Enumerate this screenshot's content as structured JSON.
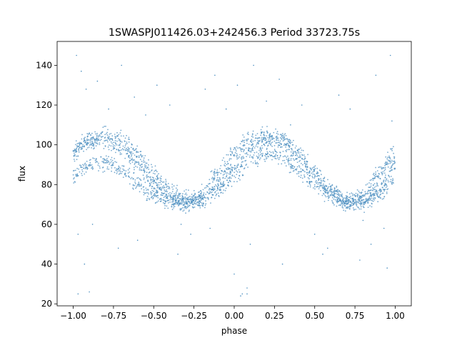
{
  "chart_data": {
    "type": "scatter",
    "title": "1SWASPJ011426.03+242456.3 Period 33723.75s",
    "xlabel": "phase",
    "ylabel": "flux",
    "xlim": [
      -1.1,
      1.1
    ],
    "ylim": [
      19,
      152
    ],
    "xticks": [
      -1.0,
      -0.75,
      -0.5,
      -0.25,
      0.0,
      0.25,
      0.5,
      0.75,
      1.0
    ],
    "xtick_labels": [
      "−1.00",
      "−0.75",
      "−0.50",
      "−0.25",
      "0.00",
      "0.25",
      "0.50",
      "0.75",
      "1.00"
    ],
    "yticks": [
      20,
      40,
      60,
      80,
      100,
      120,
      140
    ],
    "ytick_labels": [
      "20",
      "40",
      "60",
      "80",
      "100",
      "120",
      "140"
    ],
    "grid": false,
    "point_color": "#4c8fc0",
    "series": [
      {
        "x": [
          -1.0,
          -0.9,
          -0.8,
          -0.7,
          -0.6,
          -0.5,
          -0.4,
          -0.3,
          -0.2,
          -0.1,
          0.0,
          0.1,
          0.2,
          0.3,
          0.4,
          0.5,
          0.6,
          0.7,
          0.8,
          0.9,
          1.0
        ],
        "y": [
          96,
          103,
          105,
          103,
          95,
          85,
          77,
          72,
          75,
          86,
          96,
          103,
          105,
          103,
          95,
          85,
          77,
          72,
          75,
          86,
          96
        ]
      },
      {
        "x": [
          -1.0,
          -0.9,
          -0.8,
          -0.7,
          -0.6,
          -0.5,
          -0.4,
          -0.3,
          -0.2,
          -0.1,
          0.0,
          0.1,
          0.2,
          0.3,
          0.4,
          0.5,
          0.6,
          0.7,
          0.8,
          0.9,
          1.0
        ],
        "y": [
          97,
          101,
          102,
          98,
          90,
          80,
          73,
          71,
          72,
          79,
          89,
          98,
          102,
          101,
          95,
          86,
          77,
          71,
          71,
          78,
          90
        ]
      },
      {
        "x": [
          -1.0,
          -0.9,
          -0.8,
          -0.7,
          -0.6,
          -0.5,
          -0.4,
          -0.3,
          -0.2,
          -0.1,
          0.0,
          0.1,
          0.2,
          0.3,
          0.4,
          0.5,
          0.6,
          0.7,
          0.8,
          0.9,
          1.0
        ],
        "y": [
          85,
          90,
          91,
          87,
          80,
          74,
          71,
          71,
          73,
          77,
          84,
          92,
          96,
          94,
          87,
          80,
          74,
          71,
          71,
          75,
          83
        ]
      }
    ],
    "outliers": {
      "x": [
        -0.98,
        -0.95,
        -0.92,
        -0.85,
        -0.78,
        -0.7,
        -0.62,
        -0.55,
        -0.48,
        -0.4,
        -0.33,
        -0.27,
        -0.18,
        -0.12,
        -0.05,
        0.02,
        0.05,
        0.08,
        0.12,
        0.2,
        0.28,
        0.35,
        0.42,
        0.5,
        0.58,
        0.65,
        0.72,
        0.8,
        0.88,
        0.93,
        0.97,
        -0.97,
        -0.9,
        -0.88,
        -0.6,
        -0.35,
        -0.15,
        0.1,
        0.3,
        0.55,
        0.78,
        0.95,
        -0.97,
        -0.93,
        0.0,
        0.04,
        0.08,
        -0.72,
        0.85,
        0.98
      ],
      "y": [
        145,
        137,
        128,
        132,
        118,
        140,
        124,
        115,
        130,
        120,
        60,
        55,
        128,
        135,
        118,
        130,
        25,
        25,
        140,
        122,
        133,
        110,
        120,
        55,
        48,
        125,
        118,
        62,
        135,
        58,
        145,
        25,
        26,
        60,
        52,
        45,
        58,
        50,
        40,
        45,
        42,
        38,
        55,
        40,
        35,
        24,
        28,
        48,
        50,
        112
      ]
    }
  }
}
